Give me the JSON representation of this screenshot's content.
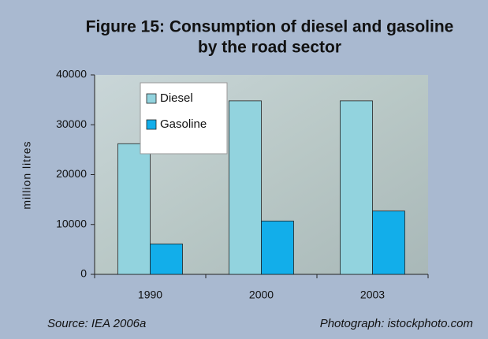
{
  "chart_data": {
    "type": "bar",
    "title": [
      "Figure 15: Consumption of diesel and gasoline",
      "by the road sector"
    ],
    "y_label": "million litres",
    "categories": [
      "1990",
      "2000",
      "2003"
    ],
    "series": [
      {
        "name": "Diesel",
        "color": "#92d3de",
        "values": [
          26200,
          34800,
          34800
        ]
      },
      {
        "name": "Gasoline",
        "color": "#12aeea",
        "values": [
          6100,
          10700,
          12700
        ]
      }
    ],
    "ylim": [
      0,
      40000
    ],
    "yticks": [
      0,
      10000,
      20000,
      30000,
      40000
    ],
    "source": "Source: IEA 2006a",
    "credit": "Photograph: istockphoto.com"
  }
}
